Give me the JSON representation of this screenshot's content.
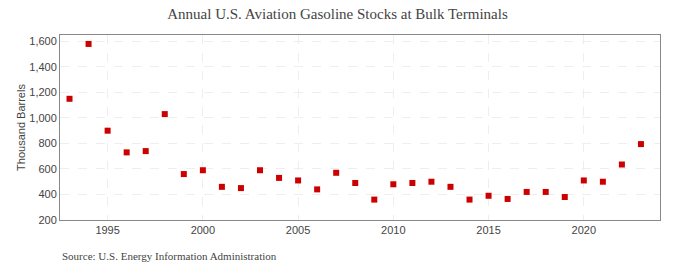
{
  "chart_data": {
    "type": "scatter",
    "title": "Annual U.S. Aviation Gasoline Stocks at Bulk Terminals",
    "y_label": "Thousand Barrels",
    "annotations": [
      "Source: U.S. Energy Information Administration"
    ],
    "x": [
      1993,
      1994,
      1995,
      1996,
      1997,
      1998,
      1999,
      2000,
      2001,
      2002,
      2003,
      2004,
      2005,
      2006,
      2007,
      2008,
      2009,
      2010,
      2011,
      2012,
      2013,
      2014,
      2015,
      2016,
      2017,
      2018,
      2019,
      2020,
      2021,
      2022,
      2023
    ],
    "values": [
      1150,
      1580,
      900,
      730,
      740,
      1030,
      560,
      590,
      460,
      450,
      590,
      530,
      510,
      440,
      570,
      490,
      360,
      480,
      490,
      500,
      460,
      360,
      390,
      365,
      420,
      420,
      380,
      510,
      500,
      635,
      795
    ],
    "color": "#cc0000",
    "marker": "square",
    "xlim": [
      1992.5,
      2024
    ],
    "xticks": [
      1995,
      2000,
      2005,
      2010,
      2015,
      2020
    ],
    "ylim": [
      200,
      1650
    ],
    "yticks": [
      200,
      400,
      600,
      800,
      {
        "value": 1000,
        "label": "1,000"
      },
      {
        "value": 1200,
        "label": "1,200"
      },
      {
        "value": 1400,
        "label": "1,400"
      },
      {
        "value": 1600,
        "label": "1,600"
      }
    ],
    "grid": true
  }
}
